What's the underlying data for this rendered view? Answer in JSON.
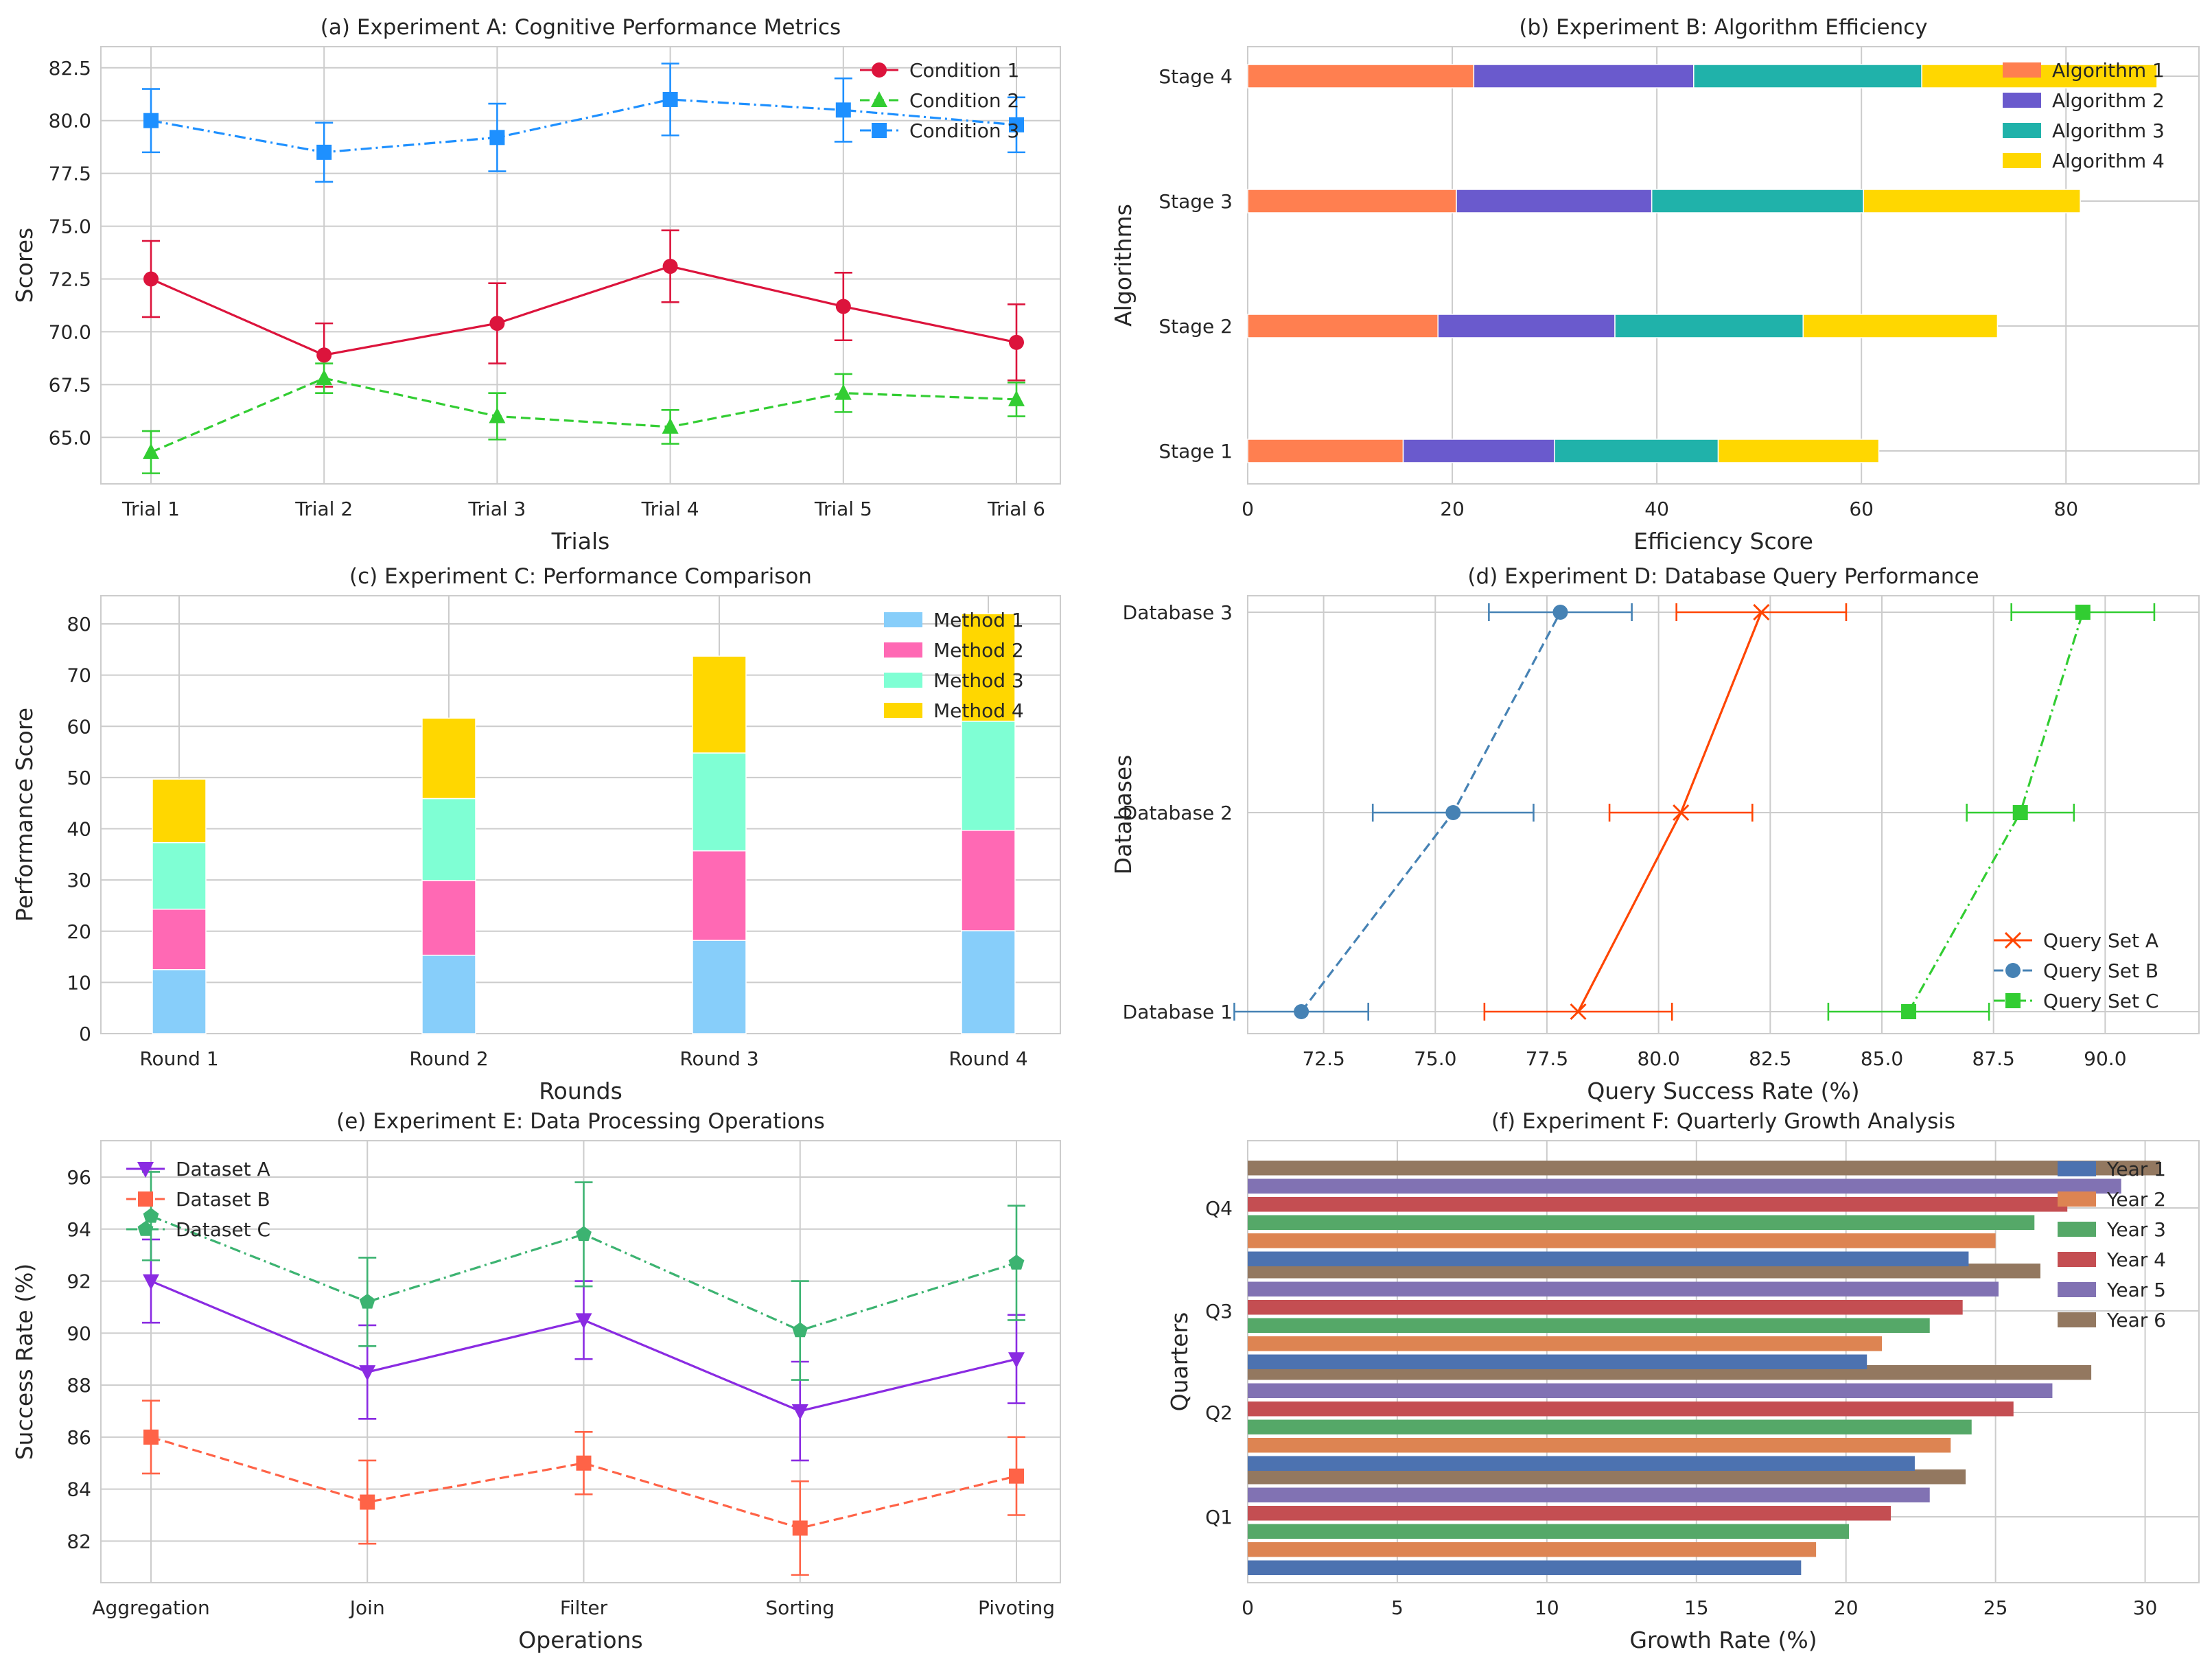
{
  "chart_data": [
    {
      "id": "a",
      "type": "line",
      "title": "(a) Experiment A: Cognitive Performance Metrics",
      "xlabel": "Trials",
      "ylabel": "Scores",
      "categories": [
        "Trial 1",
        "Trial 2",
        "Trial 3",
        "Trial 4",
        "Trial 5",
        "Trial 6"
      ],
      "yticks": [
        "65.0",
        "67.5",
        "70.0",
        "72.5",
        "75.0",
        "77.5",
        "80.0",
        "82.5"
      ],
      "ylim": [
        62.8,
        83.5
      ],
      "legend_position": "upper right",
      "grid": true,
      "series": [
        {
          "name": "Condition 1",
          "color": "#DC143C",
          "marker": "circle",
          "dash": "solid",
          "values": [
            72.5,
            68.9,
            70.4,
            73.1,
            71.2,
            69.5
          ],
          "errors": [
            1.8,
            1.5,
            1.9,
            1.7,
            1.6,
            1.8
          ]
        },
        {
          "name": "Condition 2",
          "color": "#32CD32",
          "marker": "triangle",
          "dash": "dashed",
          "values": [
            64.3,
            67.8,
            66.0,
            65.5,
            67.1,
            66.8
          ],
          "errors": [
            1.0,
            0.7,
            1.1,
            0.8,
            0.9,
            0.8
          ]
        },
        {
          "name": "Condition 3",
          "color": "#1E90FF",
          "marker": "square",
          "dash": "dashdot",
          "values": [
            80.0,
            78.5,
            79.2,
            81.0,
            80.5,
            79.8
          ],
          "errors": [
            1.5,
            1.4,
            1.6,
            1.7,
            1.5,
            1.3
          ]
        }
      ]
    },
    {
      "id": "b",
      "type": "bar",
      "orientation": "horizontal",
      "stacked": true,
      "title": "(b) Experiment B: Algorithm Efficiency",
      "xlabel": "Efficiency Score",
      "ylabel": "Algorithms",
      "categories": [
        "Stage 1",
        "Stage 2",
        "Stage 3",
        "Stage 4"
      ],
      "xticks": [
        "0",
        "20",
        "40",
        "60",
        "80"
      ],
      "xlim": [
        0,
        93
      ],
      "legend_position": "upper right",
      "grid": true,
      "series": [
        {
          "name": "Algorithm 1",
          "color": "#FF7F50",
          "values": [
            15.2,
            18.6,
            20.4,
            22.1
          ]
        },
        {
          "name": "Algorithm 2",
          "color": "#6A5ACD",
          "values": [
            14.8,
            17.3,
            19.1,
            21.5
          ]
        },
        {
          "name": "Algorithm 3",
          "color": "#20B2AA",
          "values": [
            16.0,
            18.4,
            20.7,
            22.3
          ]
        },
        {
          "name": "Algorithm 4",
          "color": "#FFD700",
          "values": [
            15.7,
            19.0,
            21.2,
            23.0
          ]
        }
      ]
    },
    {
      "id": "c",
      "type": "bar",
      "orientation": "vertical",
      "stacked": true,
      "title": "(c) Experiment C: Performance Comparison",
      "xlabel": "Rounds",
      "ylabel": "Performance Score",
      "categories": [
        "Round 1",
        "Round 2",
        "Round 3",
        "Round 4"
      ],
      "yticks": [
        "0",
        "10",
        "20",
        "30",
        "40",
        "50",
        "60",
        "70",
        "80"
      ],
      "ylim": [
        0,
        85.5
      ],
      "legend_position": "upper right",
      "grid": true,
      "series": [
        {
          "name": "Method 1",
          "color": "#87CEFA",
          "values": [
            12.5,
            15.3,
            18.2,
            20.1
          ]
        },
        {
          "name": "Method 2",
          "color": "#FF69B4",
          "values": [
            11.8,
            14.6,
            17.5,
            19.6
          ]
        },
        {
          "name": "Method 3",
          "color": "#7FFFD4",
          "values": [
            13.0,
            16.0,
            19.1,
            21.3
          ]
        },
        {
          "name": "Method 4",
          "color": "#FFD700",
          "values": [
            12.4,
            15.7,
            18.9,
            21.0
          ]
        }
      ]
    },
    {
      "id": "d",
      "type": "line",
      "orientation": "horizontal",
      "title": "(d) Experiment D: Database Query Performance",
      "xlabel": "Query Success Rate (%)",
      "ylabel": "Databases",
      "categories": [
        "Database 1",
        "Database 2",
        "Database 3"
      ],
      "xticks": [
        "72.5",
        "75.0",
        "77.5",
        "80.0",
        "82.5",
        "85.0",
        "87.5",
        "90.0"
      ],
      "xlim": [
        70.8,
        92.1
      ],
      "legend_position": "lower right",
      "grid": true,
      "series": [
        {
          "name": "Query Set A",
          "color": "#FF4500",
          "marker": "x",
          "dash": "solid",
          "values": [
            78.2,
            80.5,
            82.3
          ],
          "errors": [
            2.1,
            1.6,
            1.9
          ]
        },
        {
          "name": "Query Set B",
          "color": "#4682B4",
          "marker": "circle",
          "dash": "dashed",
          "values": [
            72.0,
            75.4,
            77.8
          ],
          "errors": [
            1.5,
            1.8,
            1.6
          ]
        },
        {
          "name": "Query Set C",
          "color": "#32CD32",
          "marker": "square",
          "dash": "dashdot",
          "values": [
            85.6,
            88.1,
            89.5
          ],
          "errors": [
            1.8,
            1.2,
            1.6
          ]
        }
      ]
    },
    {
      "id": "e",
      "type": "line",
      "title": "(e) Experiment E: Data Processing Operations",
      "xlabel": "Operations",
      "ylabel": "Success Rate (%)",
      "categories": [
        "Aggregation",
        "Join",
        "Filter",
        "Sorting",
        "Pivoting"
      ],
      "yticks": [
        "82",
        "84",
        "86",
        "88",
        "90",
        "92",
        "94",
        "96"
      ],
      "ylim": [
        80.4,
        97.4
      ],
      "legend_position": "upper left",
      "grid": true,
      "series": [
        {
          "name": "Dataset A",
          "color": "#8A2BE2",
          "marker": "triangle-down",
          "dash": "solid",
          "values": [
            92.0,
            88.5,
            90.5,
            87.0,
            89.0
          ],
          "errors": [
            1.6,
            1.8,
            1.5,
            1.9,
            1.7
          ]
        },
        {
          "name": "Dataset B",
          "color": "#FF6347",
          "marker": "square",
          "dash": "dashed",
          "values": [
            86.0,
            83.5,
            85.0,
            82.5,
            84.5
          ],
          "errors": [
            1.4,
            1.6,
            1.2,
            1.8,
            1.5
          ]
        },
        {
          "name": "Dataset C",
          "color": "#3CB371",
          "marker": "pentagon",
          "dash": "dashdot",
          "values": [
            94.5,
            91.2,
            93.8,
            90.1,
            92.7
          ],
          "errors": [
            1.7,
            1.7,
            2.0,
            1.9,
            2.2
          ]
        }
      ]
    },
    {
      "id": "f",
      "type": "bar",
      "orientation": "horizontal",
      "grouped": true,
      "title": "(f) Experiment F: Quarterly Growth Analysis",
      "xlabel": "Growth Rate (%)",
      "ylabel": "Quarters",
      "categories": [
        "Q1",
        "Q2",
        "Q3",
        "Q4"
      ],
      "xticks": [
        "0",
        "5",
        "10",
        "15",
        "20",
        "25",
        "30"
      ],
      "xlim": [
        0,
        31.8
      ],
      "legend_position": "upper right",
      "grid": true,
      "series": [
        {
          "name": "Year 1",
          "color": "#4C72B0",
          "values": [
            18.5,
            22.3,
            20.7,
            24.1
          ]
        },
        {
          "name": "Year 2",
          "color": "#DD8452",
          "values": [
            19.0,
            23.5,
            21.2,
            25.0
          ]
        },
        {
          "name": "Year 3",
          "color": "#55A868",
          "values": [
            20.1,
            24.2,
            22.8,
            26.3
          ]
        },
        {
          "name": "Year 4",
          "color": "#C44E52",
          "values": [
            21.5,
            25.6,
            23.9,
            27.4
          ]
        },
        {
          "name": "Year 5",
          "color": "#8172B3",
          "values": [
            22.8,
            26.9,
            25.1,
            29.2
          ]
        },
        {
          "name": "Year 6",
          "color": "#937860",
          "values": [
            24.0,
            28.2,
            26.5,
            30.5
          ]
        }
      ]
    }
  ]
}
